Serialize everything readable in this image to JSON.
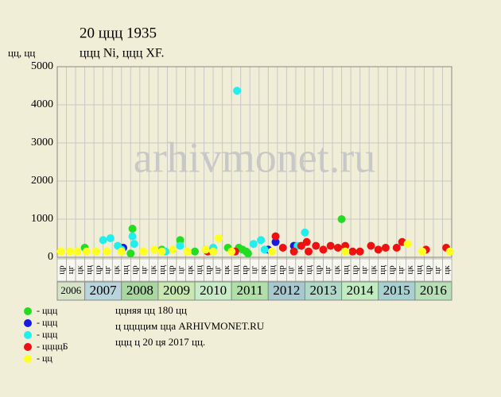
{
  "chart_data": {
    "type": "scatter",
    "title": "20 ццц 1935",
    "subtitle": "ццц Ni, ццц XF.",
    "y_label": "цц, цц",
    "watermark": "arhivmonet.ru",
    "xlim": [
      2006.25,
      2017
    ],
    "ylim": [
      0,
      5000
    ],
    "yticks": [
      0,
      1000,
      2000,
      3000,
      4000,
      5000
    ],
    "grid": true,
    "xticks": [
      {
        "value": 2006.25,
        "label": "2006"
      },
      {
        "value": 2007,
        "label": "2007"
      },
      {
        "value": 2008,
        "label": "2008"
      },
      {
        "value": 2009,
        "label": "2009"
      },
      {
        "value": 2010,
        "label": "2010"
      },
      {
        "value": 2011,
        "label": "2011"
      },
      {
        "value": 2012,
        "label": "2012"
      },
      {
        "value": 2013,
        "label": "2013"
      },
      {
        "value": 2014,
        "label": "2014"
      },
      {
        "value": 2015,
        "label": "2015"
      },
      {
        "value": 2016,
        "label": "2016"
      }
    ],
    "quarter_labels": [
      "цр",
      "цг",
      "цк",
      "цц",
      "цр",
      "цг",
      "цк",
      "цц",
      "цр",
      "цг",
      "цк",
      "цц",
      "цр",
      "цг",
      "цк",
      "цц",
      "цр",
      "цг",
      "цк",
      "цц",
      "цр",
      "цг",
      "цк",
      "цц",
      "цр",
      "цг",
      "цк",
      "цц",
      "цр",
      "цг",
      "цк",
      "цц",
      "цр",
      "цг",
      "цк",
      "цц",
      "цр",
      "цг",
      "цк",
      "цц",
      "цр",
      "цг",
      "цк"
    ],
    "series": [
      {
        "name": "- ццц",
        "color": "#22dd22",
        "x": [
          2007.0,
          2008.3,
          2008.25,
          2009.1,
          2009.6,
          2010.0,
          2010.3,
          2010.9,
          2011.2,
          2011.3,
          2011.4,
          2011.45,
          2014.0
        ],
        "values": [
          250,
          750,
          100,
          200,
          450,
          150,
          200,
          250,
          250,
          200,
          150,
          100,
          1000
        ]
      },
      {
        "name": "- ццц",
        "color": "#1a1add",
        "x": [
          2008.05,
          2012.0,
          2012.2,
          2012.7
        ],
        "values": [
          250,
          200,
          400,
          300
        ]
      },
      {
        "name": "- ццц",
        "color": "#22eeee",
        "x": [
          2007.5,
          2007.7,
          2007.9,
          2008.0,
          2008.3,
          2008.35,
          2009.2,
          2009.6,
          2010.5,
          2011.15,
          2011.6,
          2011.8,
          2011.9,
          2012.8,
          2013.0
        ],
        "values": [
          450,
          500,
          300,
          200,
          550,
          350,
          150,
          300,
          250,
          4370,
          350,
          450,
          200,
          300,
          650
        ]
      },
      {
        "name": "- ццццБ",
        "color": "#ee1111",
        "x": [
          2010.35,
          2011.1,
          2012.2,
          2012.4,
          2012.7,
          2012.9,
          2013.05,
          2013.1,
          2013.3,
          2013.5,
          2013.7,
          2013.9,
          2014.1,
          2014.3,
          2014.5,
          2014.8,
          2015.0,
          2015.2,
          2015.5,
          2015.65,
          2016.3,
          2016.85
        ],
        "values": [
          150,
          150,
          550,
          250,
          150,
          300,
          400,
          150,
          300,
          200,
          300,
          250,
          300,
          150,
          150,
          300,
          200,
          250,
          250,
          400,
          200,
          250
        ]
      },
      {
        "name": "- цц",
        "color": "#ffff22",
        "x": [
          2006.35,
          2006.6,
          2006.8,
          2007.05,
          2007.3,
          2007.6,
          2008.0,
          2008.6,
          2008.9,
          2009.1,
          2009.4,
          2009.8,
          2010.3,
          2010.5,
          2010.65,
          2011.0,
          2012.1,
          2014.1,
          2015.8,
          2016.2,
          2016.95
        ],
        "values": [
          150,
          150,
          150,
          150,
          150,
          150,
          150,
          150,
          200,
          150,
          200,
          150,
          200,
          150,
          500,
          150,
          150,
          150,
          350,
          150,
          150
        ]
      }
    ],
    "footer": [
      "ццняя цц 180 цц",
      "ц ццццим цца ARHIVMONET.RU",
      "ццц ц 20 ця 2017 цц."
    ]
  }
}
